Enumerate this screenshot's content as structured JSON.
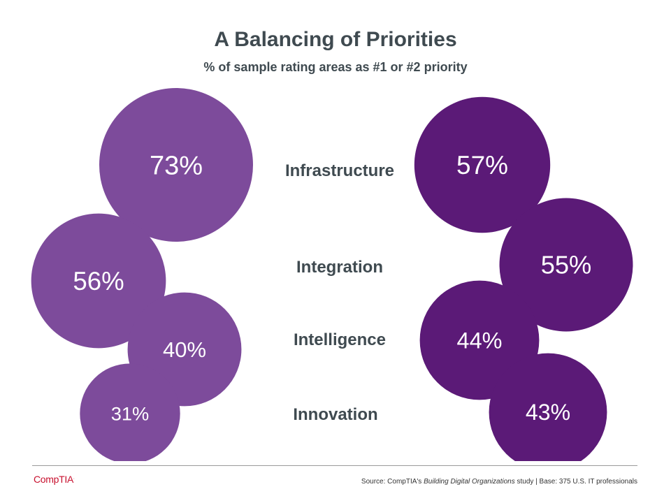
{
  "header": {
    "title": "A Balancing of Priorities",
    "subtitle": "% of sample rating areas as #1 or #2 priority"
  },
  "footer": {
    "logo": "CompTIA",
    "source_prefix": "Source: CompTIA's ",
    "source_italic": "Building Digital Organizations",
    "source_suffix": " study | Base: 375 U.S. IT professionals"
  },
  "colors": {
    "left_series": "#7d4b9b",
    "right_series": "#5b1a77",
    "text": "#3f4a50"
  },
  "chart_data": {
    "type": "bubble",
    "title": "A Balancing of Priorities",
    "subtitle": "% of sample rating areas as #1 or #2 priority",
    "categories": [
      "Infrastructure",
      "Integration",
      "Intelligence",
      "Innovation"
    ],
    "series": [
      {
        "name": "left",
        "side": "left",
        "values": [
          73,
          56,
          40,
          31
        ],
        "labels": [
          "73%",
          "56%",
          "40%",
          "31%"
        ]
      },
      {
        "name": "right",
        "side": "right",
        "values": [
          57,
          55,
          44,
          43
        ],
        "labels": [
          "57%",
          "55%",
          "44%",
          "43%"
        ]
      }
    ]
  }
}
